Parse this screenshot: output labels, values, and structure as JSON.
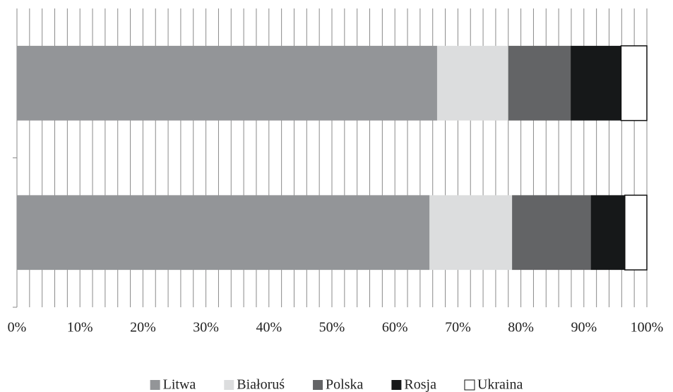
{
  "chart_data": {
    "type": "stacked_barh",
    "categories": [
      null,
      null
    ],
    "series": [
      {
        "name": "Litwa",
        "color": "#939598",
        "values": [
          66.7,
          65.5
        ]
      },
      {
        "name": "Białoruś",
        "color": "#dcddde",
        "values": [
          11.3,
          13.1
        ]
      },
      {
        "name": "Polska",
        "color": "#636466",
        "values": [
          9.9,
          12.5
        ]
      },
      {
        "name": "Rosja",
        "color": "#161819",
        "values": [
          8.0,
          5.4
        ]
      },
      {
        "name": "Ukraina",
        "color": "#ffffff",
        "values": [
          4.1,
          3.5
        ]
      }
    ],
    "xlim": [
      0,
      100
    ],
    "xticks": [
      {
        "value": 0,
        "label": "0%"
      },
      {
        "value": 10,
        "label": "10%"
      },
      {
        "value": 20,
        "label": "20%"
      },
      {
        "value": 30,
        "label": "30%"
      },
      {
        "value": 40,
        "label": "40%"
      },
      {
        "value": 50,
        "label": "50%"
      },
      {
        "value": 60,
        "label": "60%"
      },
      {
        "value": 70,
        "label": "70%"
      },
      {
        "value": 80,
        "label": "80%"
      },
      {
        "value": 90,
        "label": "90%"
      },
      {
        "value": 100,
        "label": "100%"
      }
    ],
    "xminor_ticks": [
      0,
      2,
      4,
      6,
      8,
      10,
      12,
      14,
      16,
      18,
      20,
      22,
      24,
      26,
      28,
      30,
      32,
      34,
      36,
      38,
      40,
      42,
      44,
      46,
      48,
      50,
      52,
      54,
      56,
      58,
      60,
      62,
      64,
      66,
      68,
      70,
      72,
      74,
      76,
      78,
      80,
      82,
      84,
      86,
      88,
      90,
      92,
      94,
      96,
      98,
      100
    ],
    "grid": true,
    "legend": "bottom"
  }
}
